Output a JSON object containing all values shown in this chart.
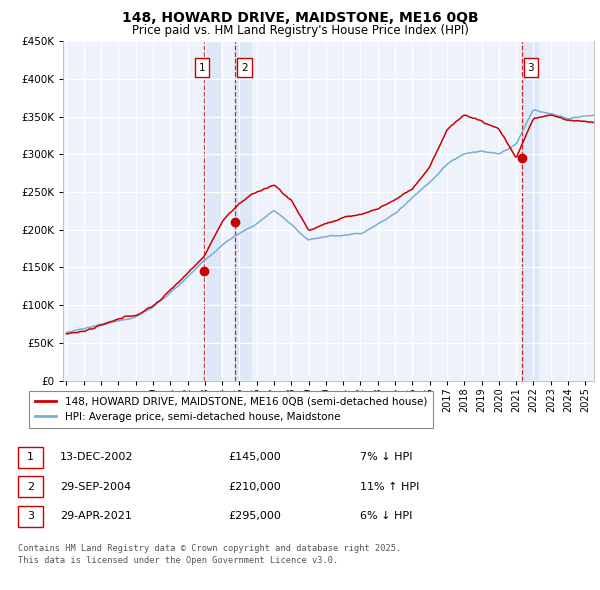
{
  "title": "148, HOWARD DRIVE, MAIDSTONE, ME16 0QB",
  "subtitle": "Price paid vs. HM Land Registry's House Price Index (HPI)",
  "legend_line1": "148, HOWARD DRIVE, MAIDSTONE, ME16 0QB (semi-detached house)",
  "legend_line2": "HPI: Average price, semi-detached house, Maidstone",
  "footer1": "Contains HM Land Registry data © Crown copyright and database right 2025.",
  "footer2": "This data is licensed under the Open Government Licence v3.0.",
  "transactions": [
    {
      "num": 1,
      "date": "13-DEC-2002",
      "price": "£145,000",
      "rel": "7% ↓ HPI",
      "year": 2002.96
    },
    {
      "num": 2,
      "date": "29-SEP-2004",
      "price": "£210,000",
      "rel": "11% ↑ HPI",
      "year": 2004.75
    },
    {
      "num": 3,
      "date": "29-APR-2021",
      "price": "£295,000",
      "rel": "6% ↓ HPI",
      "year": 2021.33
    }
  ],
  "transaction_prices": [
    145000,
    210000,
    295000
  ],
  "ylim": [
    0,
    450000
  ],
  "yticks": [
    0,
    50000,
    100000,
    150000,
    200000,
    250000,
    300000,
    350000,
    400000,
    450000
  ],
  "xlim_start": 1995,
  "xlim_end": 2025.5,
  "red_color": "#cc0000",
  "blue_color": "#7aadd4",
  "bg_color": "#eef2fb",
  "grid_color": "#ffffff",
  "highlight_color": "#d0dff5"
}
